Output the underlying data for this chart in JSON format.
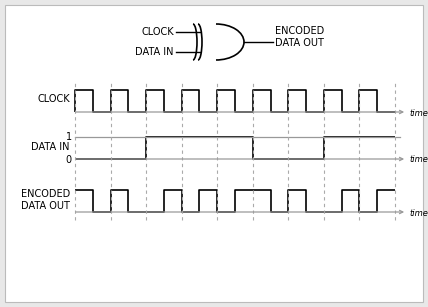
{
  "bg_color": "#e8e8e8",
  "panel_color": "#ffffff",
  "signal_color": "#000000",
  "gray_color": "#999999",
  "dashed_color": "#aaaaaa",
  "clock_label": "CLOCK",
  "datain_label": "DATA IN",
  "encoded_label": "ENCODED\nDATA OUT",
  "time_label": "time",
  "xor_input1": "CLOCK",
  "xor_input2": "DATA IN",
  "xor_output": "ENCODED\nDATA OUT",
  "num_bits": 9,
  "data_bits": [
    0,
    0,
    1,
    1,
    1,
    0,
    0,
    1,
    1
  ],
  "font_size": 7,
  "small_font": 6,
  "label_font": 7
}
